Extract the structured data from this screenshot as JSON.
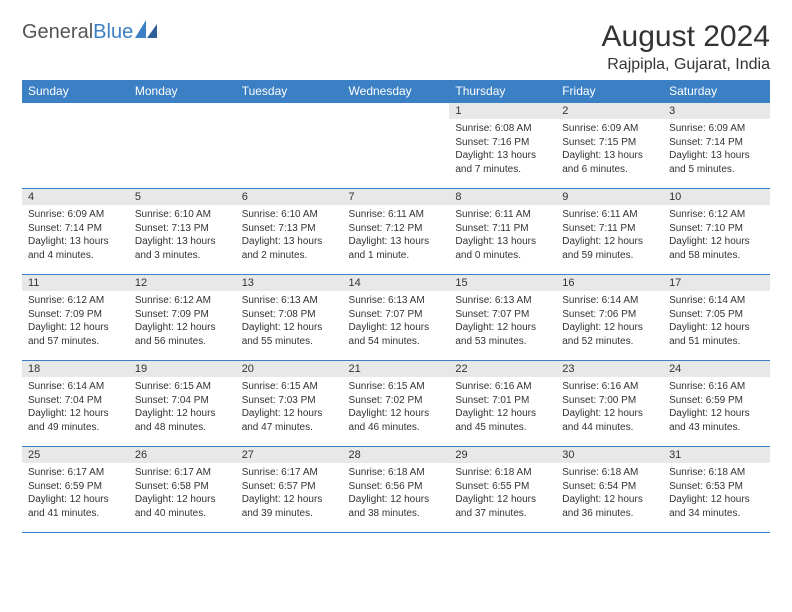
{
  "logo": {
    "text_gray": "General",
    "text_blue": "Blue"
  },
  "title": "August 2024",
  "location": "Rajpipla, Gujarat, India",
  "colors": {
    "header_blue": "#3b7fc4",
    "day_bar_gray": "#e8e8e8",
    "text": "#333333",
    "bg": "#ffffff"
  },
  "weekdays": [
    "Sunday",
    "Monday",
    "Tuesday",
    "Wednesday",
    "Thursday",
    "Friday",
    "Saturday"
  ],
  "weeks": [
    [
      {
        "blank": true
      },
      {
        "blank": true
      },
      {
        "blank": true
      },
      {
        "blank": true
      },
      {
        "n": "1",
        "sr": "6:08 AM",
        "ss": "7:16 PM",
        "dl": "13 hours and 7 minutes."
      },
      {
        "n": "2",
        "sr": "6:09 AM",
        "ss": "7:15 PM",
        "dl": "13 hours and 6 minutes."
      },
      {
        "n": "3",
        "sr": "6:09 AM",
        "ss": "7:14 PM",
        "dl": "13 hours and 5 minutes."
      }
    ],
    [
      {
        "n": "4",
        "sr": "6:09 AM",
        "ss": "7:14 PM",
        "dl": "13 hours and 4 minutes."
      },
      {
        "n": "5",
        "sr": "6:10 AM",
        "ss": "7:13 PM",
        "dl": "13 hours and 3 minutes."
      },
      {
        "n": "6",
        "sr": "6:10 AM",
        "ss": "7:13 PM",
        "dl": "13 hours and 2 minutes."
      },
      {
        "n": "7",
        "sr": "6:11 AM",
        "ss": "7:12 PM",
        "dl": "13 hours and 1 minute."
      },
      {
        "n": "8",
        "sr": "6:11 AM",
        "ss": "7:11 PM",
        "dl": "13 hours and 0 minutes."
      },
      {
        "n": "9",
        "sr": "6:11 AM",
        "ss": "7:11 PM",
        "dl": "12 hours and 59 minutes."
      },
      {
        "n": "10",
        "sr": "6:12 AM",
        "ss": "7:10 PM",
        "dl": "12 hours and 58 minutes."
      }
    ],
    [
      {
        "n": "11",
        "sr": "6:12 AM",
        "ss": "7:09 PM",
        "dl": "12 hours and 57 minutes."
      },
      {
        "n": "12",
        "sr": "6:12 AM",
        "ss": "7:09 PM",
        "dl": "12 hours and 56 minutes."
      },
      {
        "n": "13",
        "sr": "6:13 AM",
        "ss": "7:08 PM",
        "dl": "12 hours and 55 minutes."
      },
      {
        "n": "14",
        "sr": "6:13 AM",
        "ss": "7:07 PM",
        "dl": "12 hours and 54 minutes."
      },
      {
        "n": "15",
        "sr": "6:13 AM",
        "ss": "7:07 PM",
        "dl": "12 hours and 53 minutes."
      },
      {
        "n": "16",
        "sr": "6:14 AM",
        "ss": "7:06 PM",
        "dl": "12 hours and 52 minutes."
      },
      {
        "n": "17",
        "sr": "6:14 AM",
        "ss": "7:05 PM",
        "dl": "12 hours and 51 minutes."
      }
    ],
    [
      {
        "n": "18",
        "sr": "6:14 AM",
        "ss": "7:04 PM",
        "dl": "12 hours and 49 minutes."
      },
      {
        "n": "19",
        "sr": "6:15 AM",
        "ss": "7:04 PM",
        "dl": "12 hours and 48 minutes."
      },
      {
        "n": "20",
        "sr": "6:15 AM",
        "ss": "7:03 PM",
        "dl": "12 hours and 47 minutes."
      },
      {
        "n": "21",
        "sr": "6:15 AM",
        "ss": "7:02 PM",
        "dl": "12 hours and 46 minutes."
      },
      {
        "n": "22",
        "sr": "6:16 AM",
        "ss": "7:01 PM",
        "dl": "12 hours and 45 minutes."
      },
      {
        "n": "23",
        "sr": "6:16 AM",
        "ss": "7:00 PM",
        "dl": "12 hours and 44 minutes."
      },
      {
        "n": "24",
        "sr": "6:16 AM",
        "ss": "6:59 PM",
        "dl": "12 hours and 43 minutes."
      }
    ],
    [
      {
        "n": "25",
        "sr": "6:17 AM",
        "ss": "6:59 PM",
        "dl": "12 hours and 41 minutes."
      },
      {
        "n": "26",
        "sr": "6:17 AM",
        "ss": "6:58 PM",
        "dl": "12 hours and 40 minutes."
      },
      {
        "n": "27",
        "sr": "6:17 AM",
        "ss": "6:57 PM",
        "dl": "12 hours and 39 minutes."
      },
      {
        "n": "28",
        "sr": "6:18 AM",
        "ss": "6:56 PM",
        "dl": "12 hours and 38 minutes."
      },
      {
        "n": "29",
        "sr": "6:18 AM",
        "ss": "6:55 PM",
        "dl": "12 hours and 37 minutes."
      },
      {
        "n": "30",
        "sr": "6:18 AM",
        "ss": "6:54 PM",
        "dl": "12 hours and 36 minutes."
      },
      {
        "n": "31",
        "sr": "6:18 AM",
        "ss": "6:53 PM",
        "dl": "12 hours and 34 minutes."
      }
    ]
  ],
  "labels": {
    "sunrise": "Sunrise:",
    "sunset": "Sunset:",
    "daylight": "Daylight:"
  }
}
